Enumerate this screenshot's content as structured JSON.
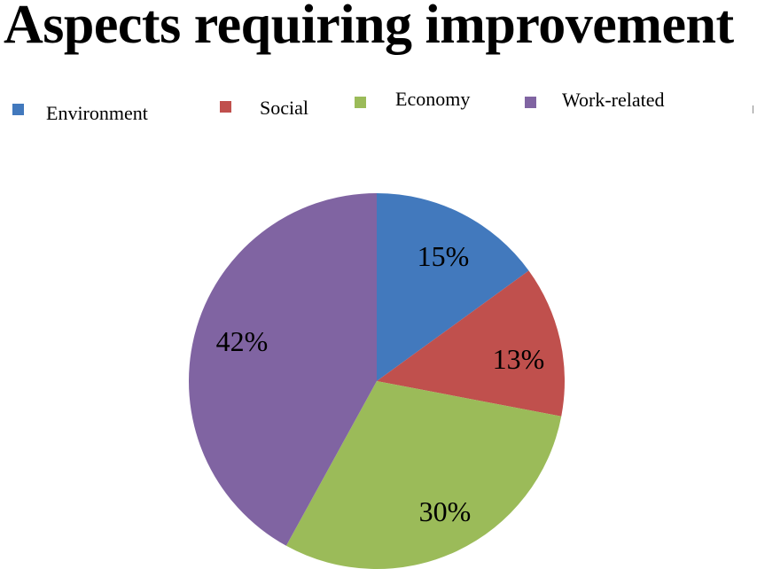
{
  "chart_data": {
    "type": "pie",
    "title": "Aspects requiring improvement",
    "categories": [
      "Environment",
      "Social",
      "Economy",
      "Work-related"
    ],
    "values": [
      15,
      13,
      30,
      42
    ],
    "data_labels": [
      "15%",
      "13%",
      "30%",
      "42%"
    ],
    "colors": [
      "#4279bd",
      "#c0504d",
      "#9bbb59",
      "#8064a2"
    ],
    "start_angle_deg": 0,
    "direction": "clockwise",
    "legend_position": "top"
  }
}
